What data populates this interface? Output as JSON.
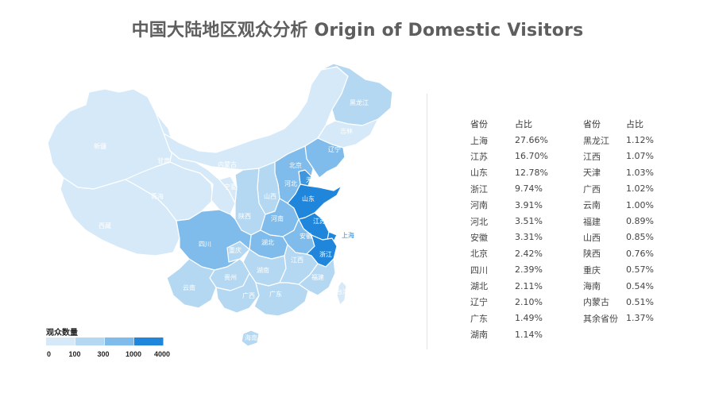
{
  "title": "中国大陆地区观众分析 Origin of Domestic Visitors",
  "colors": {
    "level0": "#d6e9f8",
    "level1": "#b5d8f2",
    "level2": "#7fbceb",
    "level3": "#3f96dd",
    "level4": "#1f86db",
    "border": "#ffffff",
    "label": "#ffffff"
  },
  "legend": {
    "title": "观众数量",
    "ticks": [
      "0",
      "100",
      "300",
      "1000",
      "4000"
    ]
  },
  "table": {
    "header": {
      "province": "省份",
      "share": "占比"
    }
  },
  "chart_data": {
    "type": "table",
    "title": "中国大陆地区观众分析 Origin of Domestic Visitors",
    "columns": [
      "省份",
      "占比"
    ],
    "rows_left": [
      [
        "上海",
        "27.66%"
      ],
      [
        "江苏",
        "16.70%"
      ],
      [
        "山东",
        "12.78%"
      ],
      [
        "浙江",
        "9.74%"
      ],
      [
        "河南",
        "3.91%"
      ],
      [
        "河北",
        "3.51%"
      ],
      [
        "安徽",
        "3.31%"
      ],
      [
        "北京",
        "2.42%"
      ],
      [
        "四川",
        "2.39%"
      ],
      [
        "湖北",
        "2.11%"
      ],
      [
        "辽宁",
        "2.10%"
      ],
      [
        "广东",
        "1.49%"
      ],
      [
        "湖南",
        "1.14%"
      ]
    ],
    "rows_right": [
      [
        "黑龙江",
        "1.12%"
      ],
      [
        "江西",
        "1.07%"
      ],
      [
        "天津",
        "1.03%"
      ],
      [
        "广西",
        "1.02%"
      ],
      [
        "云南",
        "1.00%"
      ],
      [
        "福建",
        "0.89%"
      ],
      [
        "山西",
        "0.85%"
      ],
      [
        "陕西",
        "0.76%"
      ],
      [
        "重庆",
        "0.57%"
      ],
      [
        "海南",
        "0.54%"
      ],
      [
        "内蒙古",
        "0.51%"
      ],
      [
        "其余省份",
        "1.37%"
      ]
    ],
    "map_regions": [
      {
        "name": "新疆",
        "level": 0
      },
      {
        "name": "西藏",
        "level": 0
      },
      {
        "name": "青海",
        "level": 0
      },
      {
        "name": "甘肃",
        "level": 0
      },
      {
        "name": "内蒙古",
        "level": 0
      },
      {
        "name": "宁夏",
        "level": 0
      },
      {
        "name": "黑龙江",
        "level": 1
      },
      {
        "name": "吉林",
        "level": 0
      },
      {
        "name": "辽宁",
        "level": 2
      },
      {
        "name": "北京",
        "level": 2
      },
      {
        "name": "天津",
        "level": 3
      },
      {
        "name": "河北",
        "level": 2
      },
      {
        "name": "山西",
        "level": 1
      },
      {
        "name": "陕西",
        "level": 1
      },
      {
        "name": "河南",
        "level": 2
      },
      {
        "name": "山东",
        "level": 4
      },
      {
        "name": "江苏",
        "level": 4
      },
      {
        "name": "上海",
        "level": 4
      },
      {
        "name": "安徽",
        "level": 2
      },
      {
        "name": "浙江",
        "level": 4
      },
      {
        "name": "湖北",
        "level": 2
      },
      {
        "name": "四川",
        "level": 2
      },
      {
        "name": "重庆",
        "level": 1
      },
      {
        "name": "湖南",
        "level": 1
      },
      {
        "name": "江西",
        "level": 1
      },
      {
        "name": "福建",
        "level": 1
      },
      {
        "name": "贵州",
        "level": 1
      },
      {
        "name": "云南",
        "level": 1
      },
      {
        "name": "广西",
        "level": 1
      },
      {
        "name": "广东",
        "level": 1
      },
      {
        "name": "台湾",
        "level": 0
      },
      {
        "name": "海南",
        "level": 1
      }
    ]
  }
}
